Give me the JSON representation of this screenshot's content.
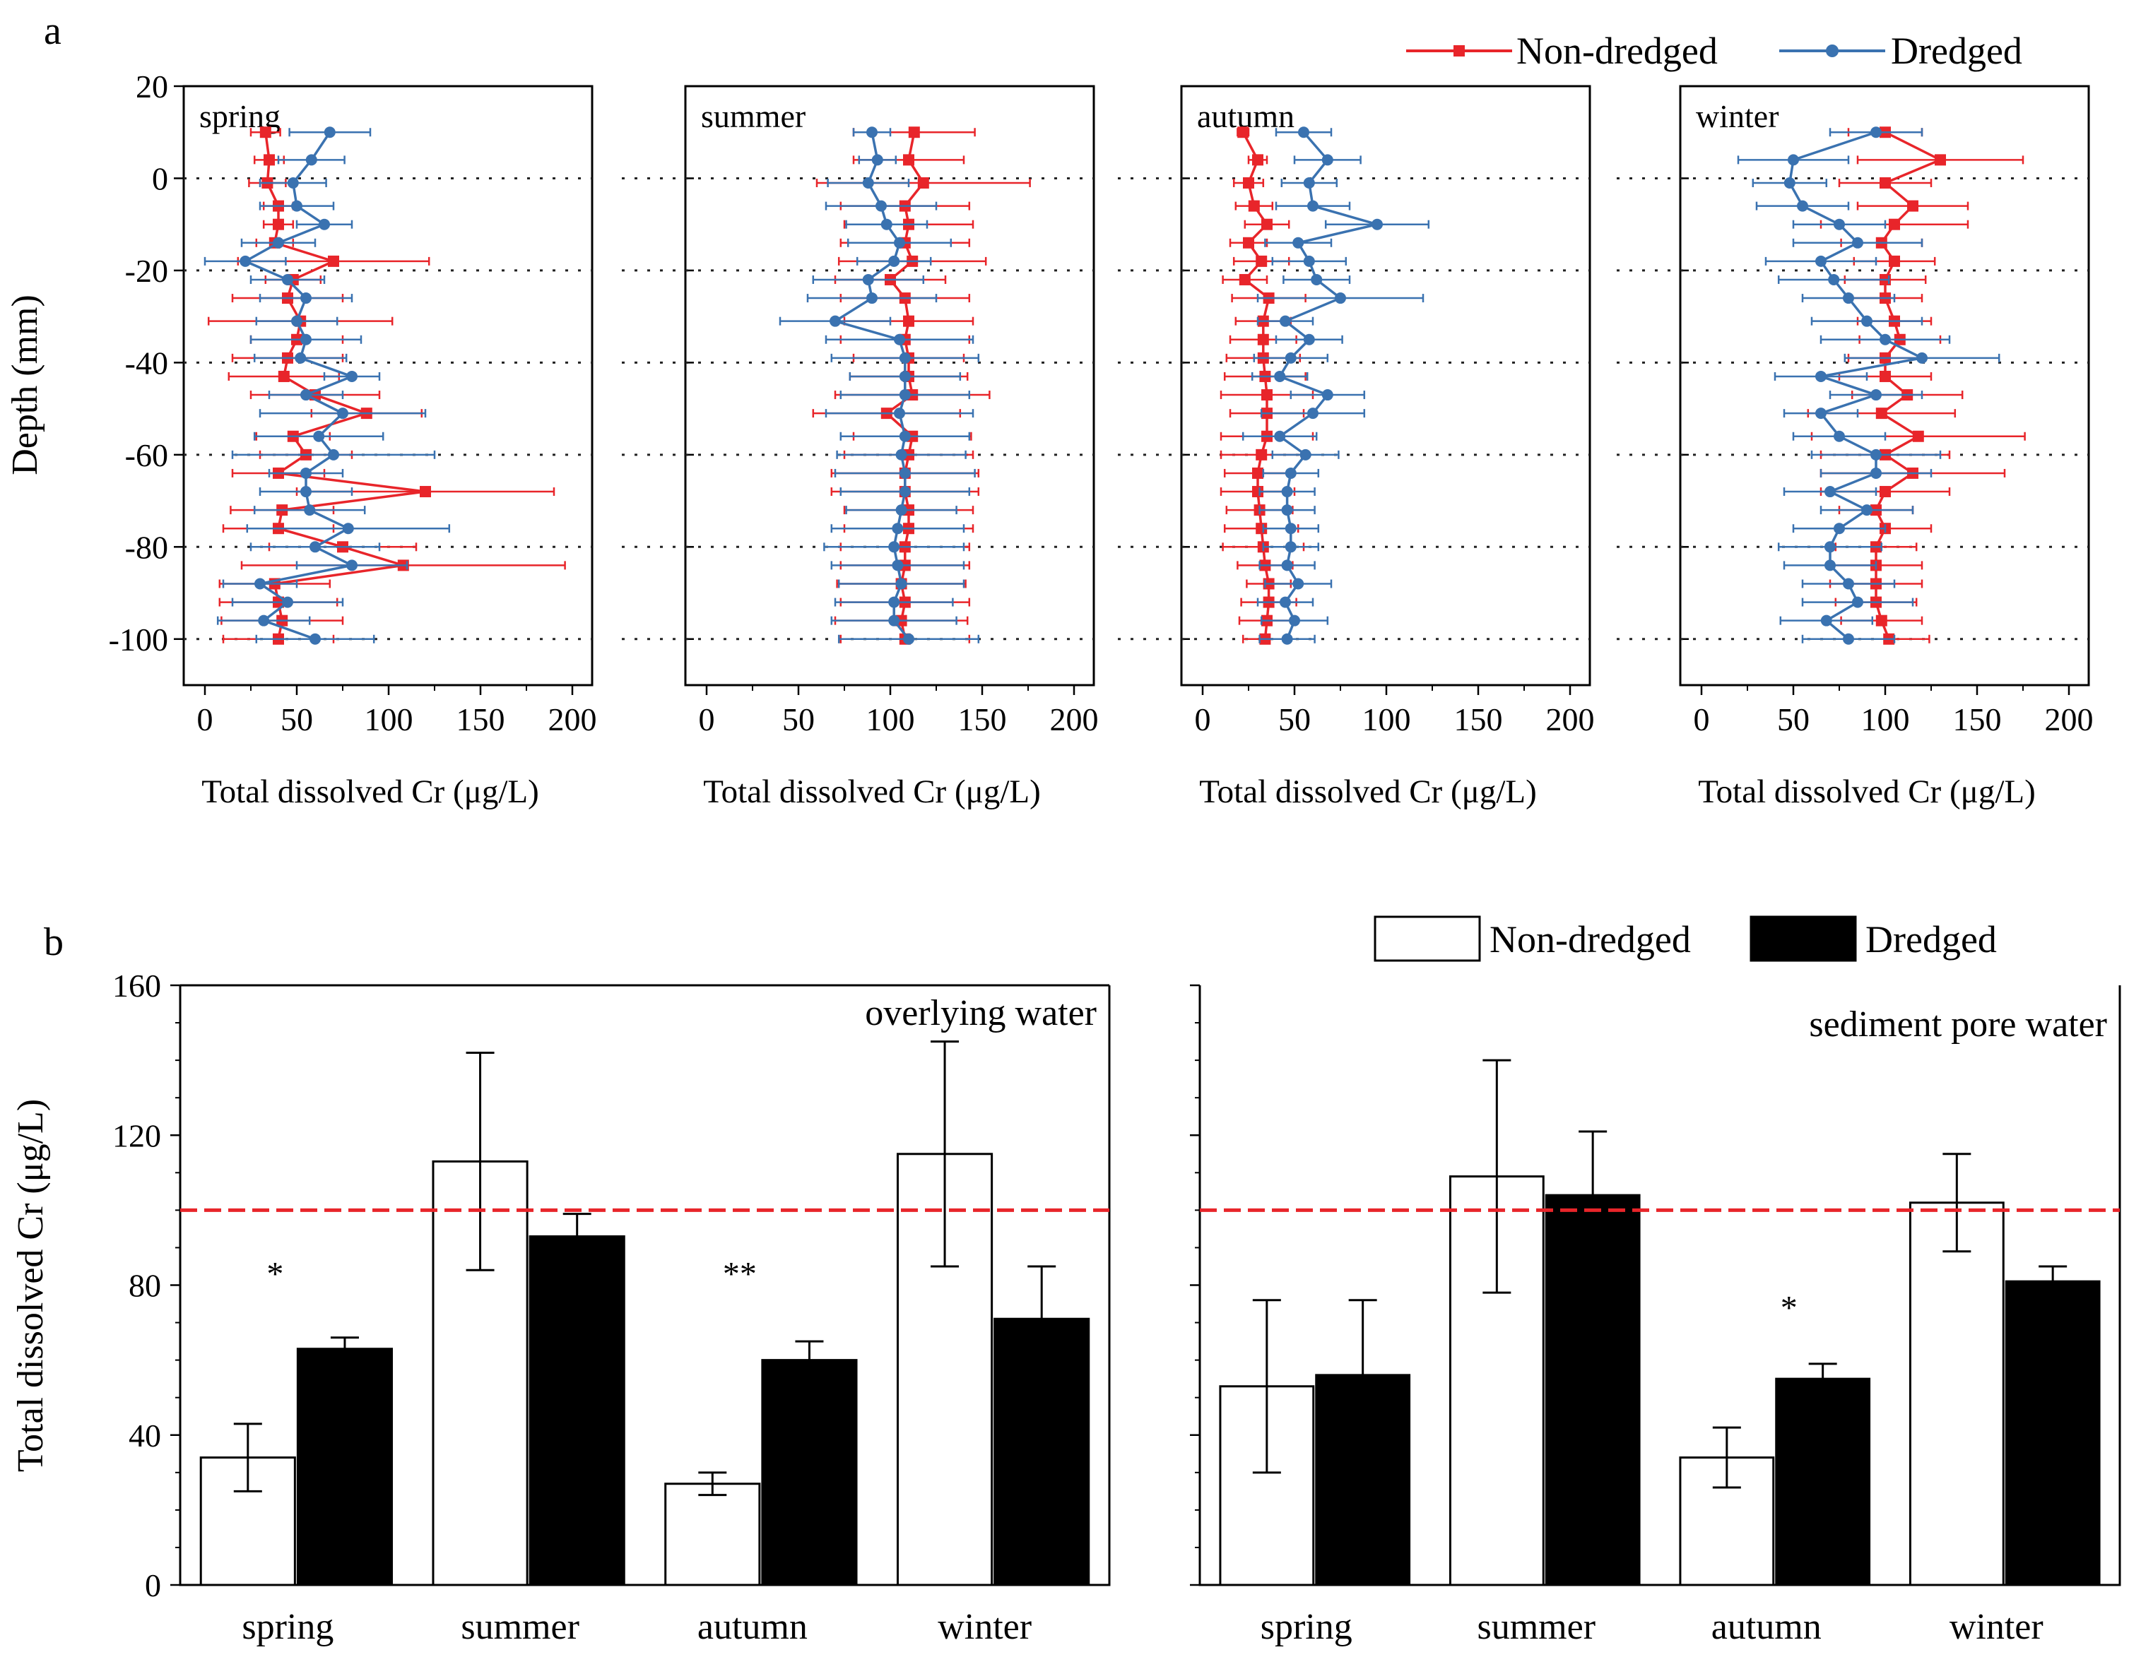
{
  "chart_data": [
    {
      "panel": "a",
      "type": "line",
      "ylabel": "Depth (mm)",
      "xlabel": "Total dissolved Cr (μg/L)",
      "xlim": [
        0,
        200
      ],
      "ylim": [
        -110,
        20
      ],
      "xticks": [
        0,
        50,
        100,
        150,
        200
      ],
      "yticks": [
        20,
        0,
        -20,
        -40,
        -60,
        -80,
        -100
      ],
      "reference_depths": [
        0,
        -20,
        -40,
        -60,
        -80,
        -100
      ],
      "legend": [
        "Non-dredged",
        "Dredged"
      ],
      "colors": {
        "non_dredged": "#e8252a",
        "dredged": "#3a72b0"
      },
      "depth": [
        10,
        4,
        -1,
        -6,
        -10,
        -14,
        -18,
        -22,
        -26,
        -31,
        -35,
        -39,
        -43,
        -47,
        -51,
        -56,
        -60,
        -64,
        -68,
        -72,
        -76,
        -80,
        -84,
        -88,
        -92,
        -96,
        -100
      ],
      "panels": [
        {
          "season": "spring",
          "non_dredged": [
            33,
            35,
            34,
            40,
            40,
            38,
            70,
            48,
            45,
            52,
            50,
            45,
            43,
            60,
            88,
            48,
            55,
            40,
            120,
            42,
            40,
            75,
            108,
            38,
            40,
            42,
            40
          ],
          "non_dredged_err": [
            8,
            8,
            10,
            8,
            8,
            10,
            52,
            15,
            30,
            50,
            25,
            30,
            30,
            35,
            30,
            20,
            25,
            25,
            70,
            28,
            30,
            40,
            88,
            30,
            32,
            33,
            30
          ],
          "dredged": [
            68,
            58,
            48,
            50,
            65,
            40,
            22,
            45,
            55,
            50,
            55,
            52,
            80,
            55,
            75,
            62,
            70,
            55,
            55,
            57,
            78,
            60,
            80,
            30,
            45,
            32,
            60
          ],
          "dredged_err": [
            22,
            18,
            18,
            20,
            15,
            20,
            22,
            20,
            25,
            22,
            30,
            25,
            15,
            20,
            45,
            35,
            55,
            20,
            25,
            30,
            55,
            35,
            30,
            20,
            30,
            25,
            32
          ]
        },
        {
          "season": "summer",
          "non_dredged": [
            113,
            110,
            118,
            108,
            110,
            108,
            112,
            100,
            108,
            110,
            108,
            110,
            110,
            112,
            98,
            112,
            110,
            108,
            108,
            110,
            110,
            108,
            108,
            106,
            108,
            106,
            108
          ],
          "non_dredged_err": [
            33,
            30,
            58,
            35,
            35,
            35,
            40,
            30,
            35,
            35,
            35,
            30,
            32,
            42,
            40,
            32,
            35,
            40,
            40,
            35,
            35,
            35,
            35,
            35,
            35,
            36,
            35
          ],
          "dredged": [
            90,
            93,
            88,
            95,
            98,
            105,
            102,
            88,
            90,
            70,
            105,
            108,
            108,
            108,
            105,
            108,
            106,
            108,
            108,
            106,
            104,
            102,
            104,
            106,
            102,
            102,
            110
          ],
          "dredged_err": [
            10,
            10,
            22,
            30,
            22,
            28,
            20,
            30,
            35,
            30,
            40,
            40,
            30,
            35,
            40,
            35,
            35,
            38,
            35,
            30,
            36,
            38,
            36,
            34,
            32,
            34,
            38
          ]
        },
        {
          "season": "autumn",
          "non_dredged": [
            22,
            30,
            25,
            28,
            35,
            25,
            32,
            23,
            36,
            33,
            33,
            33,
            34,
            35,
            35,
            35,
            32,
            30,
            30,
            31,
            32,
            33,
            34,
            36,
            36,
            35,
            34
          ],
          "non_dredged_err": [
            3,
            5,
            8,
            10,
            12,
            10,
            15,
            12,
            20,
            15,
            18,
            20,
            22,
            25,
            20,
            25,
            22,
            18,
            20,
            18,
            20,
            22,
            15,
            12,
            15,
            15,
            12
          ],
          "dredged": [
            55,
            68,
            58,
            60,
            95,
            52,
            58,
            62,
            75,
            45,
            58,
            48,
            42,
            68,
            60,
            42,
            56,
            48,
            46,
            46,
            48,
            48,
            46,
            52,
            45,
            50,
            46
          ],
          "dredged_err": [
            15,
            18,
            15,
            20,
            28,
            18,
            20,
            18,
            45,
            15,
            18,
            20,
            15,
            20,
            28,
            20,
            18,
            15,
            15,
            15,
            15,
            15,
            15,
            18,
            15,
            18,
            15
          ]
        },
        {
          "season": "winter",
          "non_dredged": [
            100,
            130,
            100,
            115,
            105,
            98,
            105,
            100,
            100,
            105,
            108,
            100,
            100,
            112,
            98,
            118,
            100,
            115,
            100,
            95,
            100,
            95,
            95,
            95,
            95,
            98,
            102
          ],
          "non_dredged_err": [
            20,
            45,
            25,
            30,
            40,
            22,
            22,
            22,
            20,
            20,
            22,
            20,
            25,
            30,
            40,
            58,
            35,
            50,
            35,
            20,
            25,
            22,
            25,
            25,
            22,
            22,
            22
          ],
          "dredged": [
            95,
            50,
            48,
            55,
            75,
            85,
            65,
            72,
            80,
            90,
            100,
            120,
            65,
            95,
            65,
            75,
            95,
            95,
            70,
            90,
            75,
            70,
            70,
            80,
            85,
            68,
            80
          ],
          "dredged_err": [
            25,
            30,
            20,
            25,
            25,
            35,
            30,
            30,
            25,
            30,
            35,
            42,
            25,
            25,
            20,
            25,
            35,
            30,
            25,
            25,
            25,
            28,
            25,
            25,
            30,
            25,
            25
          ]
        }
      ]
    },
    {
      "panel": "b",
      "type": "bar",
      "ylabel": "Total dissolved Cr (μg/L)",
      "ylim": [
        0,
        160
      ],
      "yticks": [
        0,
        40,
        80,
        120,
        160
      ],
      "categories": [
        "spring",
        "summer",
        "autumn",
        "winter"
      ],
      "legend": [
        "Non-dredged",
        "Dredged"
      ],
      "reference_line": 100,
      "colors": {
        "non_dredged": "#ffffff",
        "dredged": "#000000",
        "reference": "#e8252a"
      },
      "groups": [
        {
          "name": "overlying water",
          "series": [
            {
              "name": "Non-dredged",
              "values": [
                34,
                113,
                27,
                115
              ],
              "errors": [
                9,
                29,
                3,
                30
              ]
            },
            {
              "name": "Dredged",
              "values": [
                63,
                93,
                60,
                71
              ],
              "errors": [
                3,
                6,
                5,
                14
              ]
            }
          ],
          "significance": [
            "*",
            "",
            "**",
            ""
          ]
        },
        {
          "name": "sediment pore water",
          "series": [
            {
              "name": "Non-dredged",
              "values": [
                53,
                109,
                34,
                102
              ],
              "errors": [
                23,
                31,
                8,
                13
              ]
            },
            {
              "name": "Dredged",
              "values": [
                56,
                104,
                55,
                81
              ],
              "errors": [
                20,
                17,
                4,
                4
              ]
            }
          ],
          "significance": [
            "",
            "",
            "*",
            ""
          ]
        }
      ]
    }
  ]
}
